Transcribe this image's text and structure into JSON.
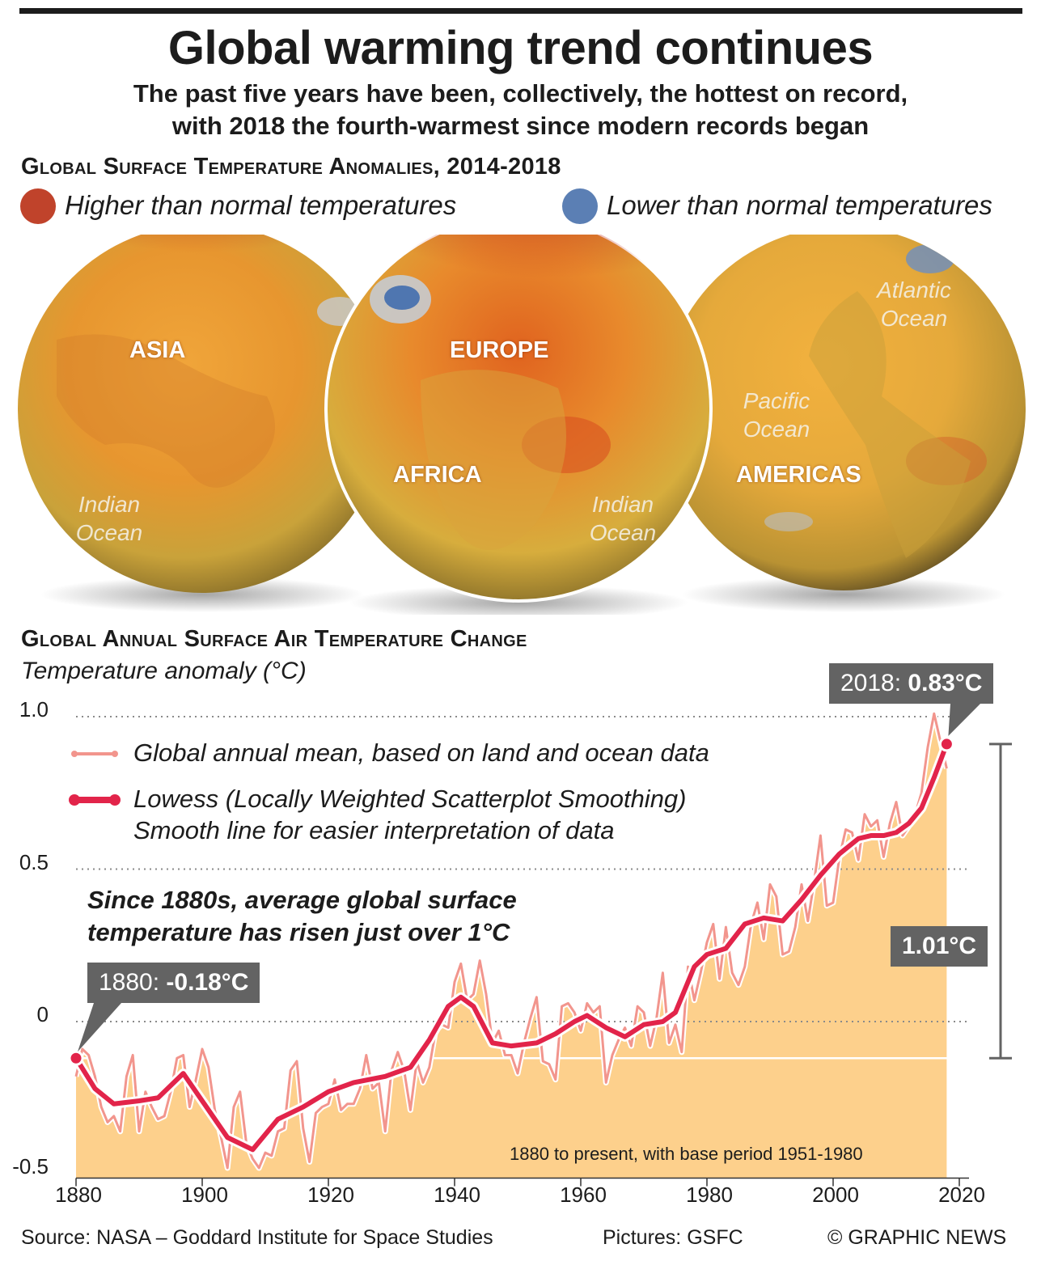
{
  "title": "Global warming trend continues",
  "subtitle_line1": "The past five years have been, collectively, the hottest on record,",
  "subtitle_line2": "with 2018 the fourth-warmest since modern records began",
  "map_section": {
    "heading": "Global Surface Temperature Anomalies, 2014-2018",
    "legend_high": "Higher than normal temperatures",
    "legend_low": "Lower than normal temperatures",
    "high_color": "#c0432b",
    "low_color": "#5b7fb4",
    "globes": {
      "asia": {
        "label": "ASIA",
        "ocean": [
          "Indian",
          "Ocean"
        ]
      },
      "europe": {
        "labels": [
          "EUROPE",
          "AFRICA"
        ],
        "ocean": [
          "Indian",
          "Ocean"
        ]
      },
      "americas": {
        "label": "AMERICAS",
        "ocean1": [
          "Atlantic",
          "Ocean"
        ],
        "ocean2": [
          "Pacific",
          "Ocean"
        ]
      }
    }
  },
  "chart_section": {
    "heading": "Global Annual Surface Air Temperature Change",
    "ylabel": "Temperature anomaly (°C)",
    "legend_mean": "Global annual mean, based on land and ocean data",
    "legend_lowess_1": "Lowess (Locally Weighted Scatterplot Smoothing)",
    "legend_lowess_2": "Smooth line for easier interpretation of data",
    "annotation_1": "Since 1880s, average global surface",
    "annotation_2": "temperature has risen just over 1°C",
    "callout_start_year": "1880:",
    "callout_start_value": "-0.18°C",
    "callout_end_year": "2018:",
    "callout_end_value": "0.83°C",
    "rise_label": "1.01°C",
    "base_note": "1880 to present, with base period 1951-1980"
  },
  "chart_data": {
    "type": "line",
    "title": "Global Annual Surface Air Temperature Change",
    "xlabel": "",
    "ylabel": "Temperature anomaly (°C)",
    "xlim": [
      1880,
      2020
    ],
    "ylim": [
      -0.5,
      1.0
    ],
    "yticks": [
      -0.5,
      0,
      0.5,
      1.0
    ],
    "ytick_labels": [
      "-0.5",
      "0",
      "0.5",
      "1.0"
    ],
    "xticks": [
      1880,
      1900,
      1920,
      1940,
      1960,
      1980,
      2000,
      2020
    ],
    "xtick_labels": [
      "1880",
      "1900",
      "1920",
      "1940",
      "1960",
      "1980",
      "2000",
      "2020"
    ],
    "grid": "dotted at 0, 0.5, 1.0",
    "series": [
      {
        "name": "Global annual mean",
        "x": [
          1880,
          1881,
          1882,
          1883,
          1884,
          1885,
          1886,
          1887,
          1888,
          1889,
          1890,
          1891,
          1892,
          1893,
          1894,
          1895,
          1896,
          1897,
          1898,
          1899,
          1900,
          1901,
          1902,
          1903,
          1904,
          1905,
          1906,
          1907,
          1908,
          1909,
          1910,
          1911,
          1912,
          1913,
          1914,
          1915,
          1916,
          1917,
          1918,
          1919,
          1920,
          1921,
          1922,
          1923,
          1924,
          1925,
          1926,
          1927,
          1928,
          1929,
          1930,
          1931,
          1932,
          1933,
          1934,
          1935,
          1936,
          1937,
          1938,
          1939,
          1940,
          1941,
          1942,
          1943,
          1944,
          1945,
          1946,
          1947,
          1948,
          1949,
          1950,
          1951,
          1952,
          1953,
          1954,
          1955,
          1956,
          1957,
          1958,
          1959,
          1960,
          1961,
          1962,
          1963,
          1964,
          1965,
          1966,
          1967,
          1968,
          1969,
          1970,
          1971,
          1972,
          1973,
          1974,
          1975,
          1976,
          1977,
          1978,
          1979,
          1980,
          1981,
          1982,
          1983,
          1984,
          1985,
          1986,
          1987,
          1988,
          1989,
          1990,
          1991,
          1992,
          1993,
          1994,
          1995,
          1996,
          1997,
          1998,
          1999,
          2000,
          2001,
          2002,
          2003,
          2004,
          2005,
          2006,
          2007,
          2008,
          2009,
          2010,
          2011,
          2012,
          2013,
          2014,
          2015,
          2016,
          2017,
          2018
        ],
        "values": [
          -0.18,
          -0.09,
          -0.11,
          -0.18,
          -0.28,
          -0.33,
          -0.31,
          -0.36,
          -0.18,
          -0.11,
          -0.36,
          -0.23,
          -0.28,
          -0.32,
          -0.31,
          -0.23,
          -0.12,
          -0.11,
          -0.28,
          -0.19,
          -0.09,
          -0.15,
          -0.29,
          -0.38,
          -0.48,
          -0.28,
          -0.23,
          -0.4,
          -0.45,
          -0.48,
          -0.43,
          -0.44,
          -0.36,
          -0.35,
          -0.16,
          -0.13,
          -0.35,
          -0.46,
          -0.3,
          -0.28,
          -0.27,
          -0.19,
          -0.29,
          -0.27,
          -0.27,
          -0.22,
          -0.11,
          -0.22,
          -0.2,
          -0.36,
          -0.16,
          -0.1,
          -0.16,
          -0.29,
          -0.13,
          -0.2,
          -0.15,
          -0.03,
          -0.01,
          -0.02,
          0.13,
          0.19,
          0.07,
          0.09,
          0.2,
          0.09,
          -0.07,
          -0.03,
          -0.11,
          -0.11,
          -0.17,
          -0.07,
          0.01,
          0.08,
          -0.13,
          -0.14,
          -0.19,
          0.05,
          0.06,
          0.03,
          -0.03,
          0.06,
          0.03,
          0.05,
          -0.2,
          -0.11,
          -0.06,
          -0.02,
          -0.08,
          0.05,
          0.03,
          -0.08,
          0.01,
          0.16,
          -0.07,
          -0.01,
          -0.1,
          0.18,
          0.07,
          0.16,
          0.26,
          0.32,
          0.14,
          0.31,
          0.16,
          0.12,
          0.18,
          0.32,
          0.39,
          0.27,
          0.45,
          0.41,
          0.22,
          0.23,
          0.31,
          0.45,
          0.33,
          0.46,
          0.61,
          0.38,
          0.39,
          0.54,
          0.63,
          0.62,
          0.53,
          0.68,
          0.64,
          0.66,
          0.54,
          0.65,
          0.72,
          0.61,
          0.64,
          0.68,
          0.75,
          0.9,
          1.01,
          0.92,
          0.83
        ]
      },
      {
        "name": "Lowess smoothing",
        "x": [
          1880,
          1883,
          1886,
          1890,
          1893,
          1897,
          1900,
          1904,
          1908,
          1912,
          1916,
          1920,
          1924,
          1929,
          1933,
          1936,
          1939,
          1941,
          1943,
          1946,
          1949,
          1953,
          1956,
          1959,
          1961,
          1964,
          1967,
          1970,
          1973,
          1975,
          1978,
          1980,
          1983,
          1986,
          1989,
          1992,
          1995,
          1998,
          2001,
          2004,
          2006,
          2008,
          2010,
          2012,
          2014,
          2016,
          2018
        ],
        "values": [
          -0.12,
          -0.22,
          -0.27,
          -0.26,
          -0.25,
          -0.17,
          -0.26,
          -0.38,
          -0.42,
          -0.32,
          -0.28,
          -0.23,
          -0.2,
          -0.18,
          -0.15,
          -0.06,
          0.05,
          0.08,
          0.05,
          -0.07,
          -0.08,
          -0.07,
          -0.04,
          0.0,
          0.02,
          -0.02,
          -0.05,
          -0.01,
          0.0,
          0.03,
          0.18,
          0.22,
          0.24,
          0.32,
          0.34,
          0.33,
          0.4,
          0.48,
          0.55,
          0.6,
          0.61,
          0.61,
          0.62,
          0.65,
          0.7,
          0.8,
          0.91
        ]
      }
    ],
    "annotations": [
      "1880: -0.18°C",
      "2018: 0.83°C",
      "1.01°C"
    ]
  },
  "footer": {
    "source": "Source: NASA – Goddard Institute for Space Studies",
    "pictures": "Pictures: GSFC",
    "credit": "© GRAPHIC NEWS"
  }
}
